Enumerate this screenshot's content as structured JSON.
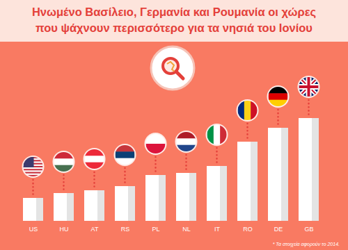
{
  "chart_data": {
    "type": "bar",
    "title": "Ηνωμένο Βασίλειο, Γερμανία και Ρουμανία οι χώρες που ψάχνουν περισσότερο για τα νησιά του Ιονίου",
    "note": "* Τα στοιχεία αφορούν το 2014.",
    "categories": [
      "US",
      "HU",
      "AT",
      "RS",
      "PL",
      "NL",
      "IT",
      "RO",
      "DE",
      "GB"
    ],
    "values": [
      33,
      40,
      44,
      50,
      66,
      69,
      79,
      114,
      134,
      148
    ],
    "color": "#ffffff",
    "ylim": [
      0,
      150
    ],
    "grid": false,
    "tick_labels": "x"
  }
}
